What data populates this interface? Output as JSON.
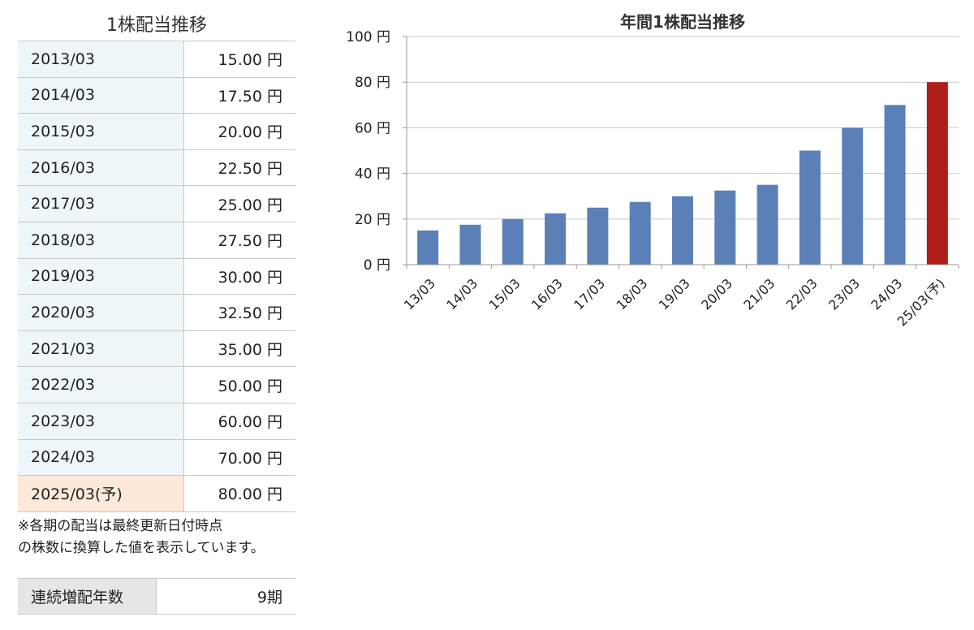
{
  "table": {
    "title": "1株配当推移",
    "rows": [
      {
        "period": "2013/03",
        "value": "15.00 円"
      },
      {
        "period": "2014/03",
        "value": "17.50 円"
      },
      {
        "period": "2015/03",
        "value": "20.00 円"
      },
      {
        "period": "2016/03",
        "value": "22.50 円"
      },
      {
        "period": "2017/03",
        "value": "25.00 円"
      },
      {
        "period": "2018/03",
        "value": "27.50 円"
      },
      {
        "period": "2019/03",
        "value": "30.00 円"
      },
      {
        "period": "2020/03",
        "value": "32.50 円"
      },
      {
        "period": "2021/03",
        "value": "35.00 円"
      },
      {
        "period": "2022/03",
        "value": "50.00 円"
      },
      {
        "period": "2023/03",
        "value": "60.00 円"
      },
      {
        "period": "2024/03",
        "value": "70.00 円"
      },
      {
        "period": "2025/03(予)",
        "value": "80.00 円"
      }
    ],
    "note_line1": "※各期の配当は最終更新日付時点",
    "note_line2": "の株数に換算した値を表示しています。"
  },
  "streak": {
    "label": "連続増配年数",
    "value": "9期"
  },
  "chart_data": {
    "type": "bar",
    "title": "年間1株配当推移",
    "categories": [
      "13/03",
      "14/03",
      "15/03",
      "16/03",
      "17/03",
      "18/03",
      "19/03",
      "20/03",
      "21/03",
      "22/03",
      "23/03",
      "24/03",
      "25/03(予)"
    ],
    "values": [
      15,
      17.5,
      20,
      22.5,
      25,
      27.5,
      30,
      32.5,
      35,
      50,
      60,
      70,
      80
    ],
    "forecast_index": 12,
    "ylim": [
      0,
      100
    ],
    "yticks": [
      0,
      20,
      40,
      60,
      80,
      100
    ],
    "ytick_labels": [
      "0 円",
      "20 円",
      "40 円",
      "60 円",
      "80 円",
      "100 円"
    ],
    "colors": {
      "bar": "#5b80b8",
      "forecast": "#b01e18",
      "grid": "#c8c8c8"
    },
    "grid": true,
    "legend": "none"
  }
}
